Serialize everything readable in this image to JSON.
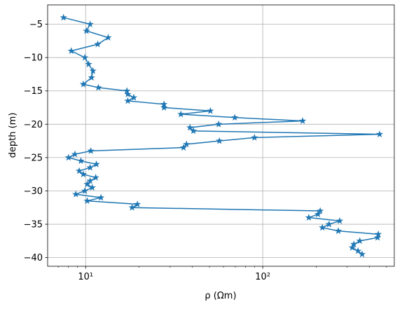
{
  "chart_data": {
    "type": "line",
    "xlabel": "ρ (Ωm)",
    "ylabel": "depth (m)",
    "xscale": "log",
    "grid": true,
    "color": "#1f77b4",
    "marker": "star",
    "xlim": [
      6.1,
      553
    ],
    "ylim": [
      -41.3,
      -2.1
    ],
    "xticks": [
      {
        "value": 10,
        "label": "10¹"
      },
      {
        "value": 100,
        "label": "10²"
      }
    ],
    "xminorticks": [
      7,
      8,
      9,
      20,
      30,
      40,
      50,
      60,
      70,
      80,
      90,
      200,
      300,
      400,
      500
    ],
    "yticks": [
      {
        "value": -5,
        "label": "−5"
      },
      {
        "value": -10,
        "label": "−10"
      },
      {
        "value": -15,
        "label": "−15"
      },
      {
        "value": -20,
        "label": "−20"
      },
      {
        "value": -25,
        "label": "−25"
      },
      {
        "value": -30,
        "label": "−30"
      },
      {
        "value": -35,
        "label": "−35"
      },
      {
        "value": -40,
        "label": "−40"
      }
    ],
    "x": [
      7.5,
      10.6,
      10.1,
      13.4,
      11.7,
      8.3,
      9.9,
      10.4,
      11.0,
      10.8,
      9.7,
      11.8,
      17.1,
      17.3,
      18.7,
      17.3,
      27.7,
      27.7,
      50.6,
      34.5,
      69.5,
      168,
      56.4,
      38.8,
      40.6,
      457,
      89.8,
      56.9,
      37.1,
      35.7,
      10.7,
      8.7,
      8.0,
      9.4,
      11.5,
      10.6,
      9.2,
      9.7,
      11.4,
      10.6,
      10.2,
      10.9,
      9.9,
      8.8,
      12.2,
      10.2,
      19.6,
      18.3,
      211,
      205,
      182,
      272,
      237,
      217,
      267,
      449,
      445,
      353,
      327,
      320,
      345,
      364
    ],
    "y": [
      -4,
      -5,
      -6,
      -7,
      -8,
      -9,
      -10,
      -11,
      -12,
      -13,
      -14,
      -14.5,
      -15,
      -15.5,
      -16,
      -16.5,
      -17,
      -17.5,
      -18,
      -18.5,
      -19,
      -19.5,
      -20,
      -20.5,
      -21,
      -21.5,
      -22,
      -22.5,
      -23,
      -23.5,
      -24,
      -24.5,
      -25,
      -25.5,
      -26,
      -26.5,
      -27,
      -27.5,
      -28,
      -28.5,
      -29,
      -29.5,
      -30,
      -30.5,
      -31,
      -31.5,
      -32,
      -32.5,
      -33,
      -33.5,
      -34,
      -34.5,
      -35,
      -35.5,
      -36,
      -36.5,
      -37,
      -37.5,
      -38,
      -38.5,
      -39,
      -39.5
    ]
  }
}
